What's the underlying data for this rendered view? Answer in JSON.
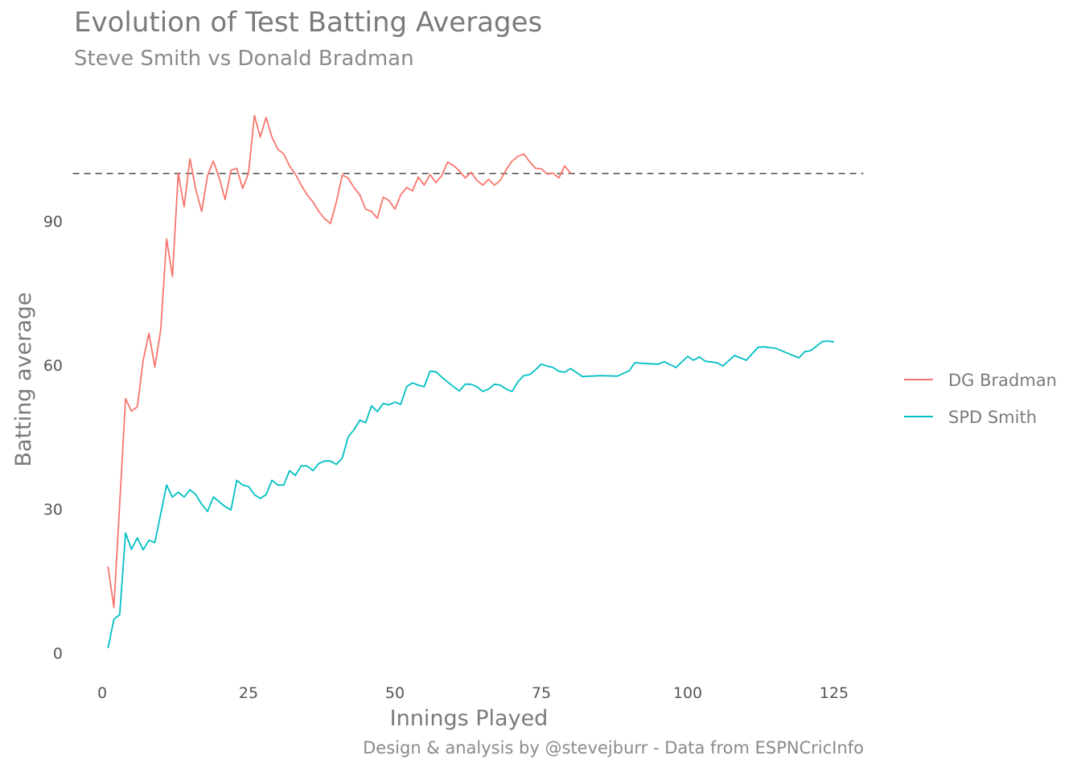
{
  "header": {
    "title": "Evolution of Test Batting Averages",
    "subtitle": "Steve Smith vs Donald Bradman"
  },
  "footer": {
    "caption": "Design & analysis by @stevejburr - Data from ESPNCricInfo"
  },
  "chart_data": {
    "type": "line",
    "title": "Evolution of Test Batting Averages",
    "subtitle": "Steve Smith vs Donald Bradman",
    "xlabel": "Innings Played",
    "ylabel": "Batting average",
    "xlim": [
      -2,
      130
    ],
    "ylim": [
      -5,
      117
    ],
    "x_ticks": [
      0,
      25,
      50,
      75,
      100,
      125
    ],
    "y_ticks": [
      0,
      30,
      60,
      90
    ],
    "grid": false,
    "legend_position": "right",
    "reference_line": {
      "y": 99.94,
      "style": "dashed",
      "color": "#555555",
      "x_range": [
        -5,
        130
      ]
    },
    "series": [
      {
        "name": "DG Bradman",
        "color": "#F8766D",
        "x": [
          1,
          2,
          3,
          4,
          5,
          6,
          7,
          8,
          9,
          10,
          11,
          12,
          13,
          14,
          15,
          16,
          17,
          18,
          19,
          20,
          21,
          22,
          23,
          24,
          25,
          26,
          27,
          28,
          29,
          30,
          31,
          32,
          33,
          34,
          35,
          36,
          37,
          38,
          39,
          40,
          41,
          42,
          43,
          44,
          45,
          46,
          47,
          48,
          49,
          50,
          51,
          52,
          53,
          54,
          55,
          56,
          57,
          58,
          59,
          60,
          61,
          62,
          63,
          64,
          65,
          66,
          67,
          68,
          69,
          70,
          71,
          72,
          73,
          74,
          75,
          76,
          77,
          78,
          79,
          80
        ],
        "values": [
          18.0,
          9.5,
          31.0,
          53.0,
          50.4,
          51.3,
          61.0,
          66.6,
          59.6,
          67.3,
          86.3,
          78.5,
          100.0,
          93.0,
          103.0,
          96.5,
          92.0,
          99.5,
          102.5,
          99.0,
          94.5,
          100.6,
          101.0,
          96.8,
          100.0,
          112.0,
          107.5,
          111.6,
          107.5,
          105.0,
          104.0,
          101.5,
          99.8,
          97.5,
          95.5,
          94.0,
          92.0,
          90.5,
          89.5,
          94.0,
          99.6,
          99.0,
          97.0,
          95.5,
          92.5,
          92.0,
          90.6,
          95.0,
          94.3,
          92.5,
          95.5,
          97.0,
          96.3,
          99.2,
          97.5,
          99.7,
          98.0,
          99.5,
          102.3,
          101.6,
          100.5,
          99.0,
          100.2,
          98.5,
          97.5,
          98.7,
          97.5,
          98.5,
          100.7,
          102.5,
          103.5,
          104.0,
          102.4,
          101.0,
          100.9,
          99.8,
          100.0,
          99.0,
          101.5,
          99.94
        ]
      },
      {
        "name": "SPD Smith",
        "color": "#00BFC4",
        "x": [
          1,
          2,
          3,
          4,
          5,
          6,
          7,
          8,
          9,
          10,
          11,
          12,
          13,
          14,
          15,
          16,
          17,
          18,
          19,
          20,
          21,
          22,
          23,
          24,
          25,
          26,
          27,
          28,
          29,
          30,
          31,
          32,
          33,
          34,
          35,
          36,
          37,
          38,
          39,
          40,
          41,
          42,
          43,
          44,
          45,
          46,
          47,
          48,
          49,
          50,
          51,
          52,
          53,
          54,
          55,
          56,
          57,
          58,
          59,
          60,
          61,
          62,
          63,
          64,
          65,
          66,
          67,
          68,
          69,
          70,
          71,
          72,
          73,
          74,
          75,
          76,
          77,
          78,
          79,
          80,
          82,
          85,
          88,
          90,
          91,
          93,
          95,
          96,
          98,
          100,
          101,
          102,
          103,
          105,
          106,
          108,
          110,
          112,
          113,
          115,
          117,
          119,
          120,
          121,
          123,
          124,
          125
        ],
        "values": [
          1.0,
          7.0,
          8.0,
          25.0,
          21.6,
          24.0,
          21.5,
          23.5,
          23.0,
          29.0,
          35.0,
          32.5,
          33.5,
          32.5,
          34.0,
          33.0,
          31.0,
          29.5,
          32.5,
          31.5,
          30.5,
          29.8,
          36.0,
          35.0,
          34.7,
          33.0,
          32.2,
          33.0,
          36.0,
          35.0,
          35.0,
          38.0,
          37.0,
          39.0,
          39.0,
          38.0,
          39.5,
          40.0,
          40.0,
          39.3,
          40.6,
          45.0,
          46.5,
          48.5,
          48.0,
          51.5,
          50.3,
          52.0,
          51.7,
          52.3,
          51.8,
          55.5,
          56.3,
          55.8,
          55.5,
          58.7,
          58.6,
          57.5,
          56.5,
          55.5,
          54.6,
          56.0,
          56.0,
          55.5,
          54.5,
          55.0,
          56.0,
          55.8,
          55.0,
          54.5,
          56.5,
          57.8,
          58.0,
          59.0,
          60.2,
          59.8,
          59.5,
          58.7,
          58.5,
          59.3,
          57.6,
          57.8,
          57.7,
          58.8,
          60.5,
          60.3,
          60.2,
          60.7,
          59.5,
          61.8,
          61.0,
          61.7,
          60.8,
          60.5,
          59.8,
          62.0,
          61.0,
          63.7,
          63.8,
          63.5,
          62.5,
          61.5,
          62.8,
          63.0,
          64.9,
          65.0,
          64.8
        ]
      }
    ]
  }
}
